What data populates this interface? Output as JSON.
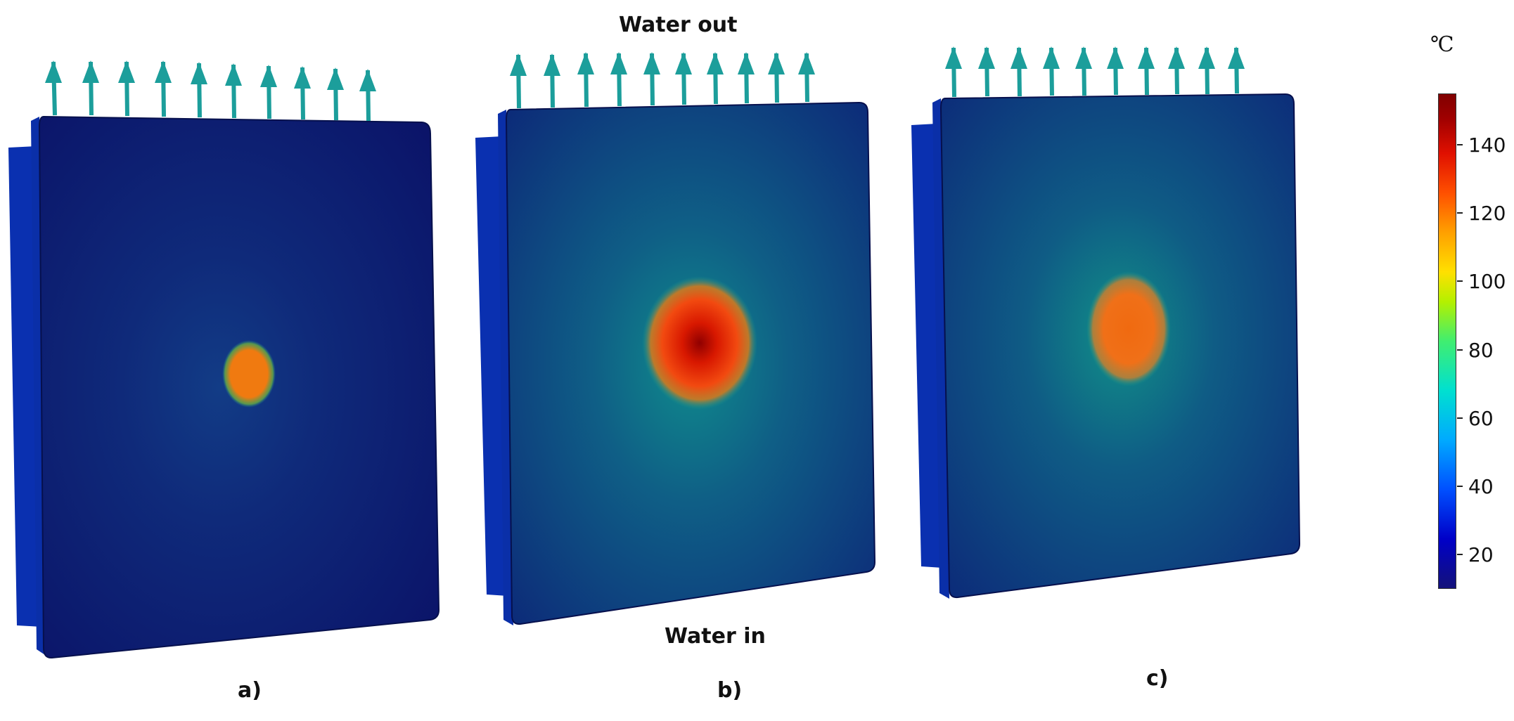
{
  "labels": {
    "water_out": "Water out",
    "water_in": "Water in"
  },
  "panels": [
    {
      "caption": "a)",
      "field_level": "low",
      "hotspot_value": 120,
      "hotspot_size": "small"
    },
    {
      "caption": "b)",
      "field_level": "medium",
      "hotspot_value": 150,
      "hotspot_size": "large"
    },
    {
      "caption": "c)",
      "field_level": "medium",
      "hotspot_value": 125,
      "hotspot_size": "large"
    }
  ],
  "colorbar": {
    "unit": "℃",
    "range": [
      10,
      155
    ],
    "ticks": [
      "20",
      "40",
      "60",
      "80",
      "100",
      "120",
      "140"
    ],
    "tick_values": [
      20,
      40,
      60,
      80,
      100,
      120,
      140
    ]
  },
  "colors": {
    "arrow": "#1c9e9b",
    "plate_side": "#0a2fa8",
    "plate_low": "#0d1670",
    "plate_mid": "#0f3f83"
  }
}
